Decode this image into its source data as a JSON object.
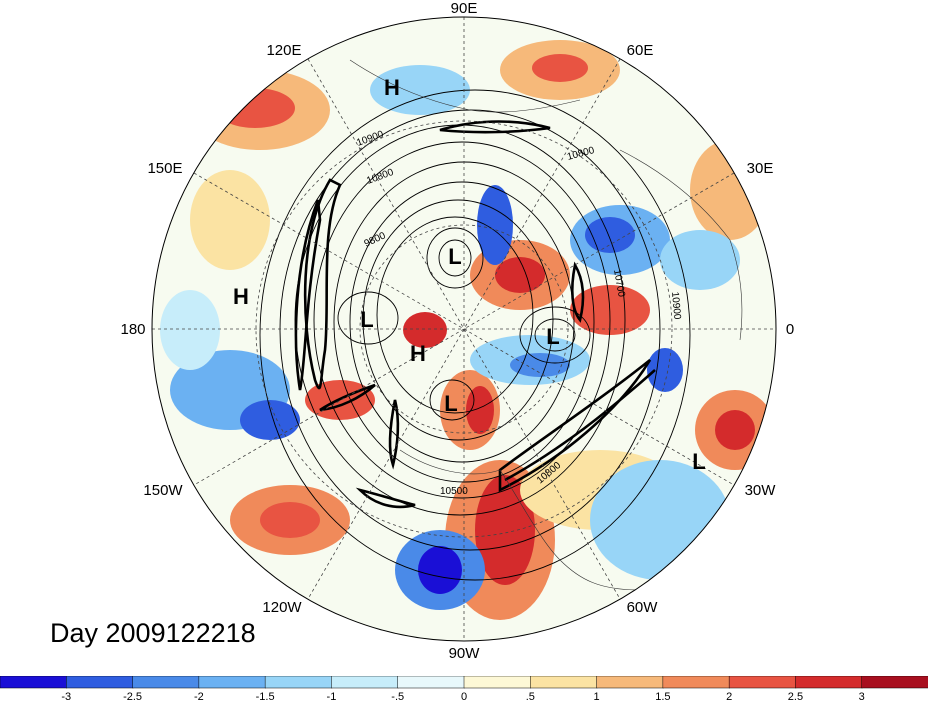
{
  "longitude_labels": [
    {
      "text": "90E"
    },
    {
      "text": "60E"
    },
    {
      "text": "30E"
    },
    {
      "text": "0"
    },
    {
      "text": "30W"
    },
    {
      "text": "60W"
    },
    {
      "text": "90W"
    },
    {
      "text": "120W"
    },
    {
      "text": "150W"
    },
    {
      "text": "180"
    },
    {
      "text": "150E"
    },
    {
      "text": "120E"
    }
  ],
  "pressure_systems": [
    {
      "type": "H"
    },
    {
      "type": "H"
    },
    {
      "type": "L"
    },
    {
      "type": "L"
    },
    {
      "type": "H"
    },
    {
      "type": "L"
    },
    {
      "type": "L"
    },
    {
      "type": "L"
    }
  ],
  "contour_labels": [
    "10900",
    "10800",
    "10800",
    "9800",
    "10700",
    "10900",
    "10500",
    "10800"
  ],
  "day_label": "Day 2009122218",
  "colorbar": {
    "colors": [
      "#1a0fd6",
      "#2f5de0",
      "#4a8ae8",
      "#6bb1f2",
      "#98d5f7",
      "#c7edfa",
      "#e8f8fb",
      "#fdf8d6",
      "#fbe3a3",
      "#f6b97a",
      "#f08a5a",
      "#e85442",
      "#d42b2c",
      "#a80f1f"
    ],
    "tick_labels": [
      "-3",
      "-2.5",
      "-2",
      "-1.5",
      "-1",
      "-.5",
      "0",
      ".5",
      "1",
      "1.5",
      "2",
      "2.5",
      "3"
    ]
  }
}
